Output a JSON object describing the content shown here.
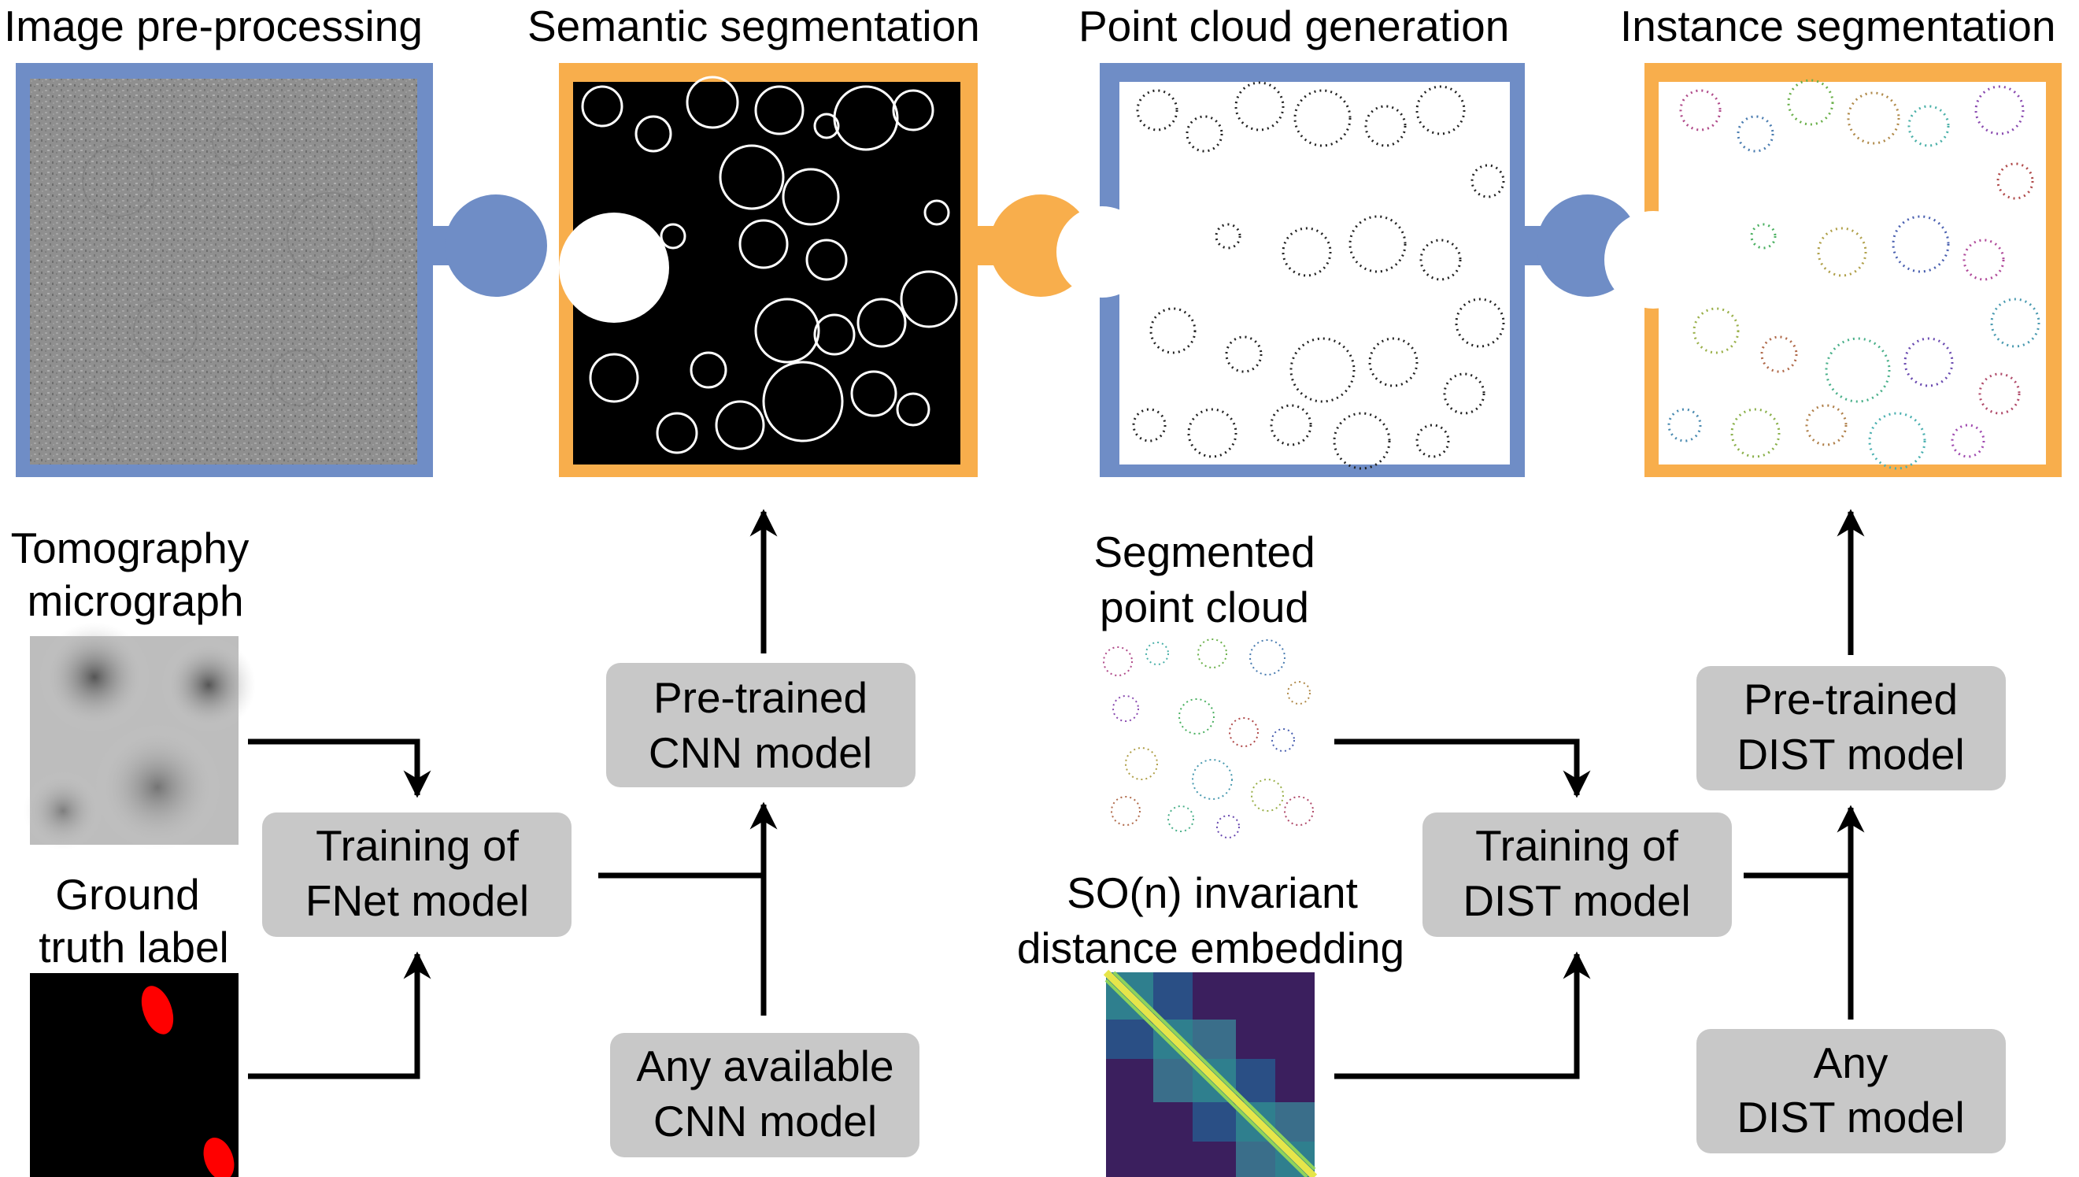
{
  "titles": {
    "stage1": "Image pre-processing",
    "stage2": "Semantic segmentation",
    "stage3": "Point cloud generation",
    "stage4": "Instance segmentation"
  },
  "inputs": {
    "tomography_line1": "Tomography",
    "tomography_line2": "micrograph",
    "ground_truth_line1": "Ground",
    "ground_truth_line2": "truth label",
    "segmented_line1": "Segmented",
    "segmented_line2": "point cloud",
    "so_line1": "SO(n) invariant",
    "so_line2": "distance embedding"
  },
  "boxes": {
    "train_fnet_line1": "Training of",
    "train_fnet_line2": "FNet model",
    "pre_cnn_line1": "Pre-trained",
    "pre_cnn_line2": "CNN model",
    "any_cnn_line1": "Any available",
    "any_cnn_line2": "CNN model",
    "train_dist_line1": "Training of",
    "train_dist_line2": "DIST model",
    "pre_dist_line1": "Pre-trained",
    "pre_dist_line2": "DIST model",
    "any_dist_line1": "Any",
    "any_dist_line2": "DIST model"
  },
  "colors": {
    "blue_frame": "#6F8DC6",
    "orange_frame": "#F8AE4C",
    "box_fill": "#C8C8C8",
    "arrow": "#000000"
  }
}
